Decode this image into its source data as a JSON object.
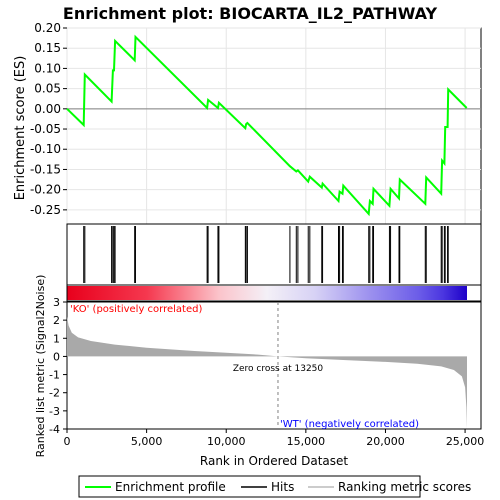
{
  "chart_data": {
    "type": "line",
    "title": "Enrichment plot: BIOCARTA_IL2_PATHWAY",
    "xlabel": "Rank in Ordered Dataset",
    "xlim": [
      0,
      26000
    ],
    "x_ticks": [
      0,
      5000,
      10000,
      15000,
      20000,
      25000
    ],
    "x_tick_labels": [
      "0",
      "5,000",
      "10,000",
      "15,000",
      "20,000",
      "25,000"
    ],
    "es_panel": {
      "ylabel": "Enrichment score (ES)",
      "ylim": [
        -0.285,
        0.2
      ],
      "y_ticks": [
        -0.25,
        -0.2,
        -0.15,
        -0.1,
        -0.05,
        0.0,
        0.05,
        0.1,
        0.15,
        0.2
      ],
      "y_tick_labels": [
        "-0.25",
        "-0.20",
        "-0.15",
        "-0.10",
        "-0.05",
        "0.00",
        "0.05",
        "0.10",
        "0.15",
        "0.20"
      ],
      "grid": true,
      "series_color": "#00ff00",
      "points": [
        [
          0,
          0.0
        ],
        [
          1050,
          -0.04
        ],
        [
          1120,
          0.085
        ],
        [
          2800,
          0.018
        ],
        [
          2880,
          0.095
        ],
        [
          2950,
          0.095
        ],
        [
          3020,
          0.168
        ],
        [
          4250,
          0.12
        ],
        [
          4300,
          0.178
        ],
        [
          8800,
          0.002
        ],
        [
          8860,
          0.022
        ],
        [
          9480,
          0.002
        ],
        [
          9540,
          0.015
        ],
        [
          11200,
          -0.048
        ],
        [
          11250,
          -0.038
        ],
        [
          11330,
          -0.035
        ],
        [
          14000,
          -0.142
        ],
        [
          14400,
          -0.155
        ],
        [
          14500,
          -0.152
        ],
        [
          15150,
          -0.18
        ],
        [
          15250,
          -0.168
        ],
        [
          16000,
          -0.195
        ],
        [
          16050,
          -0.185
        ],
        [
          17050,
          -0.228
        ],
        [
          17120,
          -0.205
        ],
        [
          17300,
          -0.21
        ],
        [
          17350,
          -0.19
        ],
        [
          18950,
          -0.26
        ],
        [
          19020,
          -0.228
        ],
        [
          19200,
          -0.235
        ],
        [
          19250,
          -0.198
        ],
        [
          20250,
          -0.24
        ],
        [
          20320,
          -0.198
        ],
        [
          20850,
          -0.222
        ],
        [
          20900,
          -0.175
        ],
        [
          22500,
          -0.235
        ],
        [
          22560,
          -0.17
        ],
        [
          23500,
          -0.21
        ],
        [
          23560,
          -0.128
        ],
        [
          23700,
          -0.135
        ],
        [
          23750,
          -0.045
        ],
        [
          23900,
          -0.045
        ],
        [
          23940,
          0.048
        ],
        [
          25100,
          0.002
        ]
      ]
    },
    "hits": [
      1050,
      1120,
      2800,
      2880,
      2950,
      3020,
      4250,
      4300,
      8800,
      8860,
      9480,
      9540,
      11200,
      11250,
      11330,
      14000,
      14400,
      14500,
      15150,
      15250,
      16000,
      16050,
      17050,
      17120,
      17300,
      17350,
      18950,
      19020,
      19200,
      19250,
      20250,
      20320,
      20850,
      20900,
      22500,
      22560,
      23500,
      23560,
      23700,
      23750,
      23900,
      23940
    ],
    "ranking_panel": {
      "ylabel": "Ranked list metric (Signal2Noise)",
      "ylim": [
        -4,
        3
      ],
      "y_ticks": [
        -4,
        -3,
        -2,
        -1,
        0,
        1,
        2,
        3
      ],
      "y_tick_labels": [
        "-4",
        "-3",
        "-2",
        "-1",
        "0",
        "1",
        "2",
        "3"
      ],
      "metric_curve": [
        [
          0,
          2.2
        ],
        [
          100,
          1.7
        ],
        [
          300,
          1.3
        ],
        [
          700,
          1.05
        ],
        [
          1500,
          0.85
        ],
        [
          3000,
          0.65
        ],
        [
          5000,
          0.48
        ],
        [
          8000,
          0.3
        ],
        [
          10000,
          0.2
        ],
        [
          12000,
          0.1
        ],
        [
          13250,
          0.0
        ],
        [
          15000,
          -0.1
        ],
        [
          17500,
          -0.2
        ],
        [
          20000,
          -0.3
        ],
        [
          22000,
          -0.4
        ],
        [
          23500,
          -0.55
        ],
        [
          24300,
          -0.75
        ],
        [
          24800,
          -1.1
        ],
        [
          25000,
          -1.7
        ],
        [
          25080,
          -2.8
        ],
        [
          25120,
          -4.0
        ]
      ],
      "zero_cross": 13250,
      "zero_cross_label": "Zero cross at 13250",
      "positive_label": "'KO' (positively correlated)",
      "negative_label": "'WT' (negatively correlated)",
      "positive_label_color": "#ff0000",
      "negative_label_color": "#0000ff"
    },
    "legend": {
      "placement": "bottom",
      "items": [
        {
          "label": "Enrichment profile",
          "color": "#00ff00"
        },
        {
          "label": "Hits",
          "color": "#000000"
        },
        {
          "label": "Ranking metric scores",
          "color": "#cccccc"
        }
      ]
    }
  }
}
